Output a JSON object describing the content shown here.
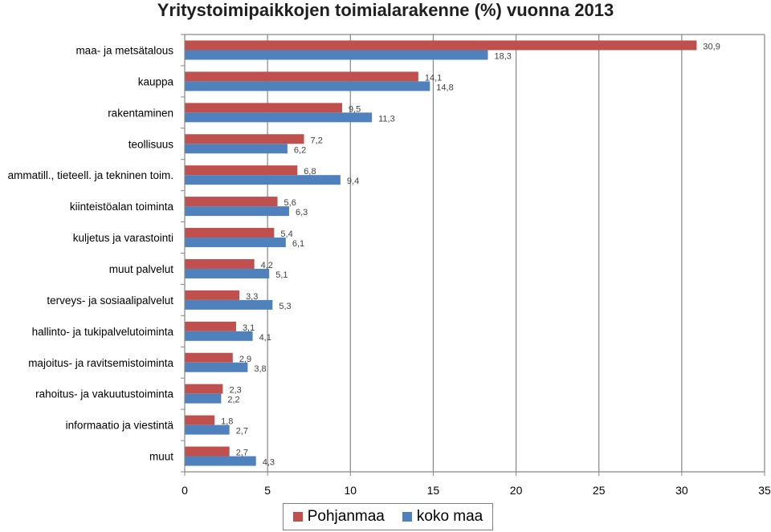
{
  "chart_data": {
    "type": "bar",
    "orientation": "horizontal",
    "title": "Yritystoimipaikkojen toimialarakenne (%) vuonna 2013",
    "categories": [
      "maa- ja metsätalous",
      "kauppa",
      "rakentaminen",
      "teollisuus",
      "ammatill., tieteell. ja tekninen toim.",
      "kiinteistöalan toiminta",
      "kuljetus ja varastointi",
      "muut palvelut",
      "terveys- ja sosiaalipalvelut",
      "hallinto- ja tukipalvelutoiminta",
      "majoitus- ja ravitsemistoiminta",
      "rahoitus- ja vakuutustoiminta",
      "informaatio ja viestintä",
      "muut"
    ],
    "series": [
      {
        "name": "Pohjanmaa",
        "color": "#c0504d",
        "values": [
          30.9,
          14.1,
          9.5,
          7.2,
          6.8,
          5.6,
          5.4,
          4.2,
          3.3,
          3.1,
          2.9,
          2.3,
          1.8,
          2.7
        ],
        "labels": [
          "30,9",
          "14,1",
          "9,5",
          "7,2",
          "6,8",
          "5,6",
          "5,4",
          "4,2",
          "3,3",
          "3,1",
          "2,9",
          "2,3",
          "1,8",
          "2,7"
        ]
      },
      {
        "name": "koko maa",
        "color": "#4f81bd",
        "values": [
          18.3,
          14.8,
          11.3,
          6.2,
          9.4,
          6.3,
          6.1,
          5.1,
          5.3,
          4.1,
          3.8,
          2.2,
          2.7,
          4.3
        ],
        "labels": [
          "18,3",
          "14,8",
          "11,3",
          "6,2",
          "9,4",
          "6,3",
          "6,1",
          "5,1",
          "5,3",
          "4,1",
          "3,8",
          "2,2",
          "2,7",
          "4,3"
        ]
      }
    ],
    "x_ticks": [
      "0",
      "5",
      "10",
      "15",
      "20",
      "25",
      "30",
      "35"
    ],
    "xlim": [
      0,
      35
    ],
    "grid": "vertical",
    "legend_position": "bottom"
  }
}
